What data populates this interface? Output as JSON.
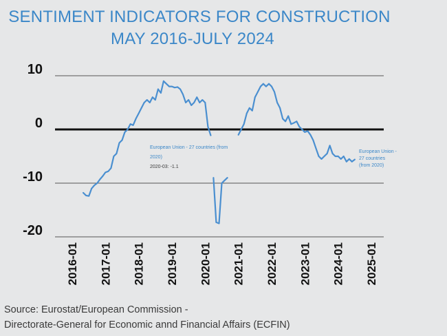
{
  "title_line1": "SENTIMENT INDICATORS FOR CONSTRUCTION",
  "title_line2": "MAY 2016-JULY 2024",
  "source_line1": "Source: Eurostat/European Commission -",
  "source_line2": "Directorate-General for Economic annd Financial Affairs (ECFIN)",
  "chart_data": {
    "type": "line",
    "x_axis": {
      "unit": "months",
      "ticks": [
        "2016-01",
        "2017-01",
        "2018-01",
        "2019-01",
        "2020-01",
        "2021-01",
        "2022-01",
        "2023-01",
        "2024-01",
        "2025-01"
      ]
    },
    "y_axis": {
      "ticks": [
        10,
        0,
        -10,
        -20
      ],
      "ylim": [
        -20,
        10
      ]
    },
    "grid": "horizontal",
    "annotations": [
      {
        "text": "European Union - 27 countries (from",
        "color": "#3b87c8"
      },
      {
        "text": "2020)",
        "color": "#3b87c8"
      },
      {
        "text": "2020-03: -1.1",
        "color": "#3a3a3a"
      },
      {
        "text": "European Union -",
        "color": "#3b87c8"
      },
      {
        "text": "27 countries",
        "color": "#3b87c8"
      },
      {
        "text": "(from 2020)",
        "color": "#3b87c8"
      }
    ],
    "series": [
      {
        "color": "#4a8fd0",
        "segments": [
          [
            [
              "2016-05",
              -11.8
            ],
            [
              "2016-06",
              -12.3
            ],
            [
              "2016-07",
              -12.4
            ],
            [
              "2016-08",
              -11.0
            ],
            [
              "2016-09",
              -10.4
            ],
            [
              "2016-10",
              -10.0
            ],
            [
              "2016-11",
              -9.3
            ],
            [
              "2016-12",
              -8.7
            ],
            [
              "2017-01",
              -8.0
            ],
            [
              "2017-02",
              -7.8
            ],
            [
              "2017-03",
              -7.2
            ],
            [
              "2017-04",
              -5.0
            ],
            [
              "2017-05",
              -4.5
            ],
            [
              "2017-06",
              -2.5
            ],
            [
              "2017-07",
              -2.0
            ],
            [
              "2017-08",
              -0.5
            ],
            [
              "2017-09",
              0.0
            ],
            [
              "2017-10",
              1.0
            ],
            [
              "2017-11",
              0.8
            ],
            [
              "2017-12",
              2.0
            ],
            [
              "2018-01",
              3.0
            ],
            [
              "2018-02",
              4.0
            ],
            [
              "2018-03",
              5.0
            ],
            [
              "2018-04",
              5.5
            ],
            [
              "2018-05",
              5.0
            ],
            [
              "2018-06",
              6.0
            ],
            [
              "2018-07",
              5.5
            ],
            [
              "2018-08",
              7.5
            ],
            [
              "2018-09",
              6.8
            ],
            [
              "2018-10",
              9.0
            ],
            [
              "2018-11",
              8.5
            ],
            [
              "2018-12",
              8.0
            ],
            [
              "2019-01",
              8.0
            ],
            [
              "2019-02",
              7.8
            ],
            [
              "2019-03",
              7.9
            ],
            [
              "2019-04",
              7.5
            ],
            [
              "2019-05",
              6.5
            ],
            [
              "2019-06",
              5.0
            ],
            [
              "2019-07",
              5.5
            ],
            [
              "2019-08",
              4.5
            ],
            [
              "2019-09",
              5.0
            ],
            [
              "2019-10",
              6.0
            ],
            [
              "2019-11",
              5.0
            ],
            [
              "2019-12",
              5.5
            ],
            [
              "2020-01",
              5.0
            ],
            [
              "2020-02",
              0.5
            ],
            [
              "2020-03",
              -1.1
            ]
          ],
          [
            [
              "2020-04",
              -9.0
            ],
            [
              "2020-05",
              -17.3
            ],
            [
              "2020-06",
              -17.5
            ],
            [
              "2020-07",
              -10.0
            ],
            [
              "2020-08",
              -9.5
            ],
            [
              "2020-09",
              -9.0
            ]
          ],
          [
            [
              "2021-01",
              -1.0
            ],
            [
              "2021-02",
              0.0
            ],
            [
              "2021-03",
              1.0
            ],
            [
              "2021-04",
              3.0
            ],
            [
              "2021-05",
              4.0
            ],
            [
              "2021-06",
              3.5
            ],
            [
              "2021-07",
              6.0
            ],
            [
              "2021-08",
              7.0
            ],
            [
              "2021-09",
              8.0
            ],
            [
              "2021-10",
              8.5
            ],
            [
              "2021-11",
              8.0
            ],
            [
              "2021-12",
              8.5
            ],
            [
              "2022-01",
              8.0
            ],
            [
              "2022-02",
              7.0
            ],
            [
              "2022-03",
              5.0
            ],
            [
              "2022-04",
              4.0
            ],
            [
              "2022-05",
              2.0
            ],
            [
              "2022-06",
              1.5
            ],
            [
              "2022-07",
              2.5
            ],
            [
              "2022-08",
              1.0
            ],
            [
              "2022-09",
              1.2
            ],
            [
              "2022-10",
              1.5
            ],
            [
              "2022-11",
              0.5
            ],
            [
              "2022-12",
              0.0
            ],
            [
              "2023-01",
              -0.5
            ],
            [
              "2023-02",
              -0.3
            ],
            [
              "2023-03",
              -1.0
            ],
            [
              "2023-04",
              -2.0
            ],
            [
              "2023-05",
              -3.5
            ],
            [
              "2023-06",
              -5.0
            ],
            [
              "2023-07",
              -5.5
            ],
            [
              "2023-08",
              -5.0
            ],
            [
              "2023-09",
              -4.5
            ],
            [
              "2023-10",
              -3.0
            ],
            [
              "2023-11",
              -4.5
            ],
            [
              "2023-12",
              -5.0
            ],
            [
              "2024-01",
              -5.0
            ],
            [
              "2024-02",
              -5.5
            ],
            [
              "2024-03",
              -5.0
            ],
            [
              "2024-04",
              -6.0
            ],
            [
              "2024-05",
              -5.5
            ],
            [
              "2024-06",
              -6.0
            ],
            [
              "2024-07",
              -5.6
            ]
          ]
        ]
      }
    ]
  }
}
